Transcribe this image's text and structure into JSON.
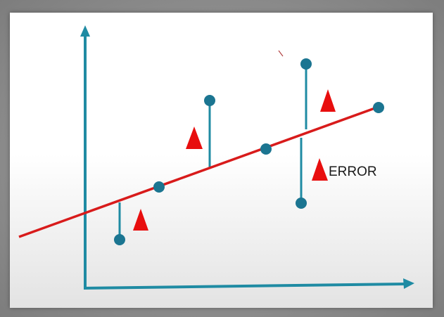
{
  "diagram": {
    "error_label": "ERROR",
    "colors": {
      "axis": "#1f8ba3",
      "regression_line": "#d81b1b",
      "point": "#1b7591",
      "residual": "#1f8ba3",
      "delta_marker": "#e80e0e"
    }
  }
}
